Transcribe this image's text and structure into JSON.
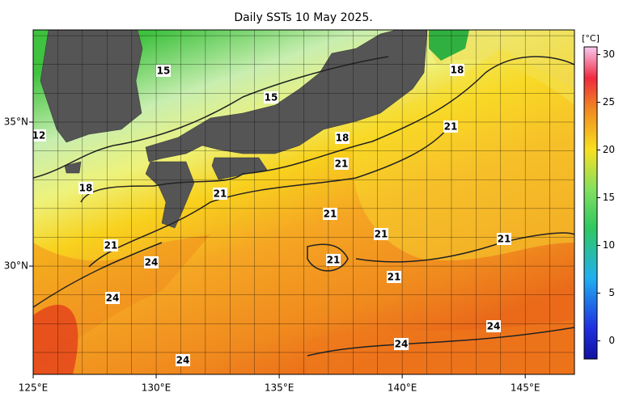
{
  "title": "Daily SSTs 10 May 2025.",
  "lon_lim": [
    125,
    147
  ],
  "lat_lim": [
    26.24,
    38.2
  ],
  "lon_ticks": [
    {
      "value": 125,
      "label": "125°E"
    },
    {
      "value": 130,
      "label": "130°E"
    },
    {
      "value": 135,
      "label": "135°E"
    },
    {
      "value": 140,
      "label": "140°E"
    },
    {
      "value": 145,
      "label": "145°E"
    }
  ],
  "lat_ticks": [
    {
      "value": 35,
      "label": "35°N"
    },
    {
      "value": 30,
      "label": "30°N"
    }
  ],
  "contour_labels": [
    "15",
    "15",
    "12",
    "18",
    "21",
    "18",
    "21",
    "21",
    "18",
    "21",
    "21",
    "21",
    "21",
    "24",
    "21",
    "21",
    "24",
    "24",
    "24",
    "24"
  ],
  "colorbar": {
    "unit": "[°C]",
    "lim": [
      -1.9,
      30.8
    ],
    "ticks": [
      0,
      5,
      10,
      15,
      20,
      25,
      30
    ]
  }
}
